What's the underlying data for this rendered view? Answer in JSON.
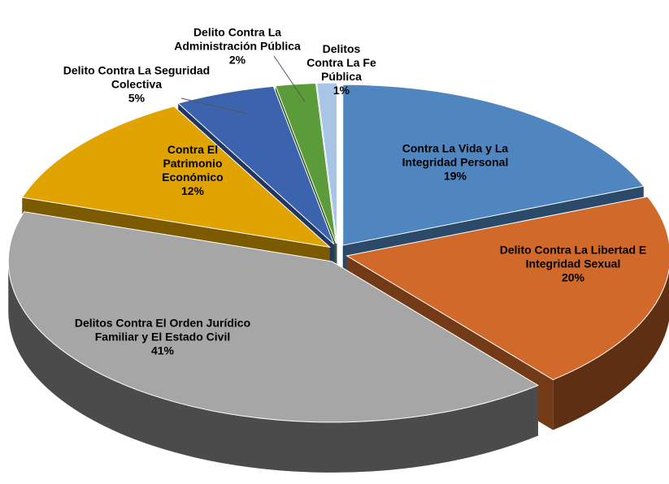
{
  "chart_data": {
    "type": "pie",
    "categories": [
      "Contra La Vida y La Integridad Personal",
      "Delito Contra La Libertad E Integridad Sexual",
      "Delitos Contra El Orden Jurídico Familiar y El Estado Civil",
      "Contra El Patrimonio Económico",
      "Delito Contra La Seguridad Colectiva",
      "Delito Contra La Administración Pública",
      "Delitos Contra La Fe Pública"
    ],
    "values": [
      19,
      20,
      41,
      12,
      5,
      2,
      1
    ],
    "value_labels": [
      "19%",
      "20%",
      "41%",
      "12%",
      "5%",
      "2%",
      "1%"
    ],
    "colors": [
      "#4f86c0",
      "#d0692a",
      "#a6a6a6",
      "#e0a300",
      "#3c63ae",
      "#5b9b3a",
      "#a9c5e6"
    ]
  }
}
